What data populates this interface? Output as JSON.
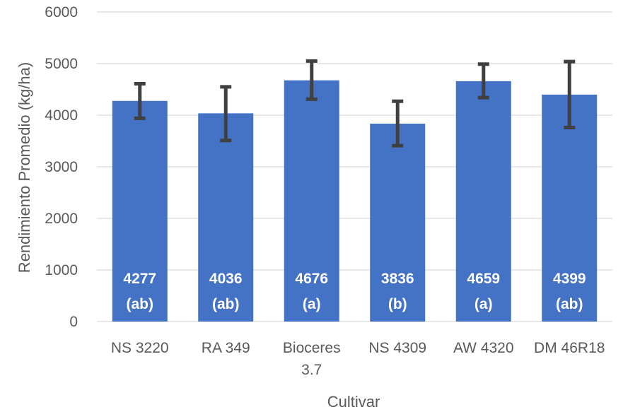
{
  "chart_data": {
    "type": "bar",
    "title": "",
    "xlabel": "Cultivar",
    "ylabel": "Rendimiento Promedio (kg/ha)",
    "ylim": [
      0,
      6000
    ],
    "yticks": [
      0,
      1000,
      2000,
      3000,
      4000,
      5000,
      6000
    ],
    "grid": true,
    "color": "#4472c4",
    "error_color": "#404040",
    "categories": [
      [
        "NS 3220"
      ],
      [
        "RA 349"
      ],
      [
        "Bioceres",
        "3.7"
      ],
      [
        "NS 4309"
      ],
      [
        "AW 4320"
      ],
      [
        "DM 46R18"
      ]
    ],
    "values": [
      4277,
      4036,
      4676,
      3836,
      4659,
      4399
    ],
    "errors": [
      [
        3940,
        4610
      ],
      [
        3510,
        4550
      ],
      [
        4310,
        5050
      ],
      [
        3410,
        4270
      ],
      [
        4340,
        4990
      ],
      [
        3760,
        5040
      ]
    ],
    "value_labels": [
      "4277",
      "4036",
      "4676",
      "3836",
      "4659",
      "4399"
    ],
    "group_labels": [
      "(ab)",
      "(ab)",
      "(a)",
      "(b)",
      "(a)",
      "(ab)"
    ]
  }
}
